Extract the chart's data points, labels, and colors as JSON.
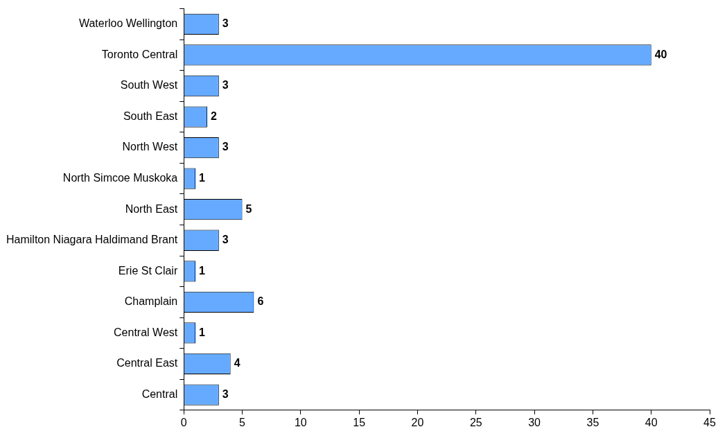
{
  "chart_data": {
    "type": "bar",
    "orientation": "horizontal",
    "categories": [
      "Waterloo Wellington",
      "Toronto Central",
      "South West",
      "South East",
      "North West",
      "North Simcoe Muskoka",
      "North East",
      "Hamilton Niagara Haldimand Brant",
      "Erie St Clair",
      "Champlain",
      "Central West",
      "Central East",
      "Central"
    ],
    "values": [
      3,
      40,
      3,
      2,
      3,
      1,
      5,
      3,
      1,
      6,
      1,
      4,
      3
    ],
    "color": "#66aaff",
    "xlim": [
      0,
      45
    ],
    "xticks": [
      0,
      5,
      10,
      15,
      20,
      25,
      30,
      35,
      40,
      45
    ],
    "grid": false,
    "legend": false,
    "data_labels": true
  }
}
